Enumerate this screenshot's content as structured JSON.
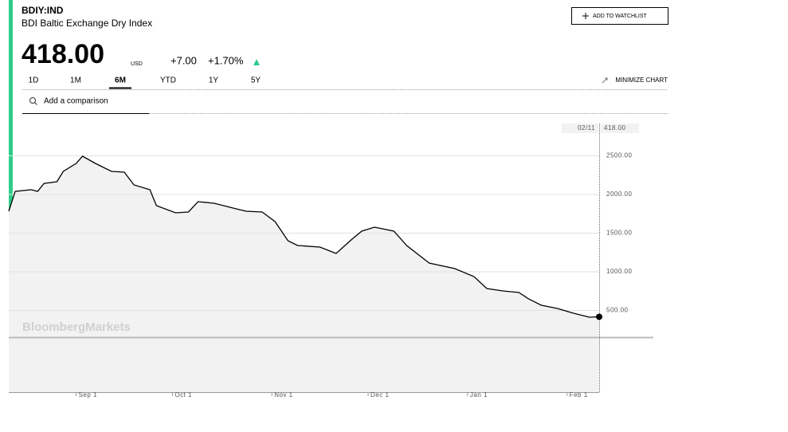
{
  "header": {
    "ticker": "BDIY:IND",
    "name": "BDI Baltic Exchange Dry Index",
    "price": "418.00",
    "currency": "USD",
    "change": "+7.00",
    "change_pct": "+1.70%",
    "watchlist": "ADD TO WATCHLIST"
  },
  "tabs": [
    "1D",
    "1M",
    "6M",
    "YTD",
    "1Y",
    "5Y"
  ],
  "selected_tab": 2,
  "minimize": "MINIMIZE CHART",
  "search_placeholder": "Add a comparison",
  "chart_data": {
    "type": "line",
    "color": "#000000",
    "fill": "#f2f2f2",
    "grid": true,
    "x": [
      0,
      2,
      7,
      9,
      11,
      15,
      17,
      21,
      23,
      27,
      32,
      36,
      39,
      44,
      46,
      52,
      56,
      59,
      64,
      71,
      74,
      79,
      83,
      87,
      90,
      97,
      102,
      107,
      110,
      114,
      120,
      124,
      131,
      139,
      145,
      149,
      154,
      159,
      162,
      166,
      171,
      176,
      181,
      184
    ],
    "values": [
      1784,
      2041,
      2062,
      2041,
      2144,
      2165,
      2299,
      2402,
      2495,
      2402,
      2299,
      2289,
      2124,
      2062,
      1856,
      1763,
      1773,
      1907,
      1887,
      1814,
      1784,
      1773,
      1649,
      1402,
      1340,
      1320,
      1237,
      1423,
      1526,
      1577,
      1526,
      1340,
      1113,
      1041,
      938,
      784,
      753,
      732,
      650,
      567,
      526,
      464,
      412,
      418
    ],
    "xlim": [
      0,
      184
    ],
    "xticks": [
      {
        "value": 21,
        "label": "Sep 1"
      },
      {
        "value": 51,
        "label": "Oct 1"
      },
      {
        "value": 82,
        "label": "Nov 1"
      },
      {
        "value": 112,
        "label": "Dec 1"
      },
      {
        "value": 143,
        "label": "Jan 1"
      },
      {
        "value": 174,
        "label": "Feb 1"
      }
    ],
    "ylim": [
      -557,
      2918
    ],
    "yticks": [
      {
        "value": 500,
        "label": "500.00"
      },
      {
        "value": 1000,
        "label": "1000.00"
      },
      {
        "value": 1500,
        "label": "1500.00"
      },
      {
        "value": 2000,
        "label": "2000.00"
      },
      {
        "value": 2500,
        "label": "2500.00"
      }
    ],
    "last_date": "02/11",
    "last_value_label": "418.00",
    "watermark": "BloombergMarkets"
  }
}
